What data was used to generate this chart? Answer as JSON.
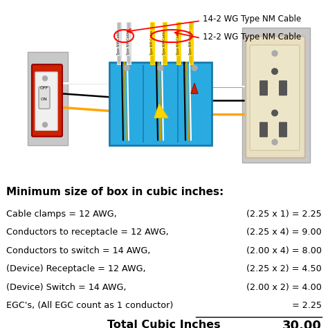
{
  "title": "Minimum size of box in cubic inches:",
  "bg_color": "#ffffff",
  "label1": "14-2 WG Type NM Cable",
  "label2": "12-2 WG Type NM Cable",
  "rows": [
    {
      "left": "Cable clamps = 12 AWG,",
      "right": "(2.25 x 1) = 2.25"
    },
    {
      "left": "Conductors to receptacle = 12 AWG,",
      "right": "(2.25 x 4) = 9.00"
    },
    {
      "left": "Conductors to switch = 14 AWG,",
      "right": "(2.00 x 4) = 8.00"
    },
    {
      "left": "(Device) Receptacle = 12 AWG,",
      "right": "(2.25 x 2) = 4.50"
    },
    {
      "left": "(Device) Switch = 14 AWG,",
      "right": "(2.00 x 2) = 4.00"
    },
    {
      "left": "EGC's, (All EGC count as 1 conductor)",
      "right": "= 2.25",
      "underline": true
    }
  ],
  "total_label": "Total Cubic Inches",
  "total_value": "30.00",
  "title_fontsize": 11.0,
  "row_fontsize": 9.2,
  "total_fontsize": 11.5
}
